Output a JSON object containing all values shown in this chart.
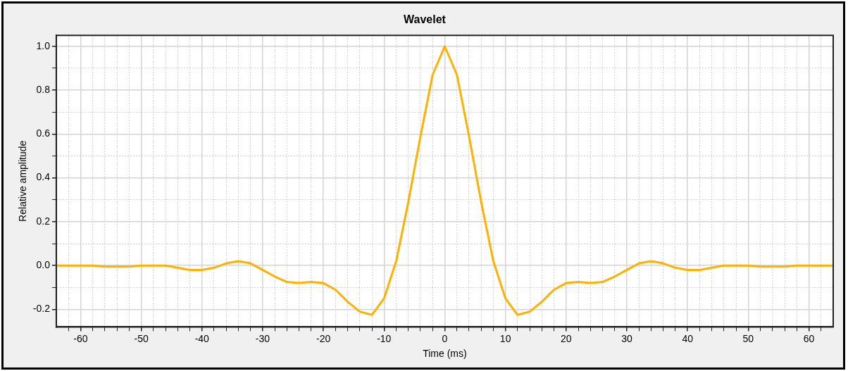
{
  "chart_data": {
    "type": "line",
    "title": "Wavelet",
    "xlabel": "Time (ms)",
    "ylabel": "Relative amplitude",
    "x": [
      -64,
      -62,
      -60,
      -58,
      -56,
      -54,
      -52,
      -50,
      -48,
      -46,
      -44,
      -42,
      -40,
      -38,
      -36,
      -34,
      -32,
      -30,
      -28,
      -26,
      -24,
      -22,
      -20,
      -18,
      -16,
      -14,
      -12,
      -10,
      -8,
      -6,
      -4,
      -2,
      0,
      2,
      4,
      6,
      8,
      10,
      12,
      14,
      16,
      18,
      20,
      22,
      24,
      26,
      28,
      30,
      32,
      34,
      36,
      38,
      40,
      42,
      44,
      46,
      48,
      50,
      52,
      54,
      56,
      58,
      60,
      62,
      64
    ],
    "series": [
      {
        "color": "#ffb000",
        "values": [
          0,
          0,
          0,
          0,
          -0.005,
          -0.005,
          -0.005,
          0,
          0,
          0,
          -0.01,
          -0.02,
          -0.02,
          -0.01,
          0.01,
          0.02,
          0.01,
          -0.02,
          -0.05,
          -0.075,
          -0.08,
          -0.075,
          -0.08,
          -0.11,
          -0.165,
          -0.21,
          -0.225,
          -0.15,
          0.02,
          0.29,
          0.59,
          0.87,
          1.0,
          0.87,
          0.59,
          0.29,
          0.02,
          -0.15,
          -0.225,
          -0.21,
          -0.165,
          -0.11,
          -0.08,
          -0.075,
          -0.08,
          -0.075,
          -0.05,
          -0.02,
          0.01,
          0.02,
          0.01,
          -0.01,
          -0.02,
          -0.02,
          -0.01,
          0,
          0,
          0,
          -0.005,
          -0.005,
          -0.005,
          0,
          0,
          0,
          0
        ]
      }
    ],
    "xlim": [
      -64,
      64
    ],
    "ylim": [
      -0.28,
      1.05
    ],
    "xticks": [
      {
        "value": -62,
        "label": null
      },
      -60,
      {
        "value": -58,
        "label": null
      },
      {
        "value": -56,
        "label": null
      },
      {
        "value": -54,
        "label": null
      },
      {
        "value": -52,
        "label": null
      },
      -50,
      {
        "value": -48,
        "label": null
      },
      {
        "value": -46,
        "label": null
      },
      {
        "value": -44,
        "label": null
      },
      {
        "value": -42,
        "label": null
      },
      -40,
      {
        "value": -38,
        "label": null
      },
      {
        "value": -36,
        "label": null
      },
      {
        "value": -34,
        "label": null
      },
      {
        "value": -32,
        "label": null
      },
      -30,
      {
        "value": -28,
        "label": null
      },
      {
        "value": -26,
        "label": null
      },
      {
        "value": -24,
        "label": null
      },
      {
        "value": -22,
        "label": null
      },
      -20,
      {
        "value": -18,
        "label": null
      },
      {
        "value": -16,
        "label": null
      },
      {
        "value": -14,
        "label": null
      },
      {
        "value": -12,
        "label": null
      },
      -10,
      {
        "value": -8,
        "label": null
      },
      {
        "value": -6,
        "label": null
      },
      {
        "value": -4,
        "label": null
      },
      {
        "value": -2,
        "label": null
      },
      0,
      {
        "value": 2,
        "label": null
      },
      {
        "value": 4,
        "label": null
      },
      {
        "value": 6,
        "label": null
      },
      {
        "value": 8,
        "label": null
      },
      10,
      {
        "value": 12,
        "label": null
      },
      {
        "value": 14,
        "label": null
      },
      {
        "value": 16,
        "label": null
      },
      {
        "value": 18,
        "label": null
      },
      20,
      {
        "value": 22,
        "label": null
      },
      {
        "value": 24,
        "label": null
      },
      {
        "value": 26,
        "label": null
      },
      {
        "value": 28,
        "label": null
      },
      30,
      {
        "value": 32,
        "label": null
      },
      {
        "value": 34,
        "label": null
      },
      {
        "value": 36,
        "label": null
      },
      {
        "value": 38,
        "label": null
      },
      40,
      {
        "value": 42,
        "label": null
      },
      {
        "value": 44,
        "label": null
      },
      {
        "value": 46,
        "label": null
      },
      {
        "value": 48,
        "label": null
      },
      50,
      {
        "value": 52,
        "label": null
      },
      {
        "value": 54,
        "label": null
      },
      {
        "value": 56,
        "label": null
      },
      {
        "value": 58,
        "label": null
      },
      60,
      {
        "value": 62,
        "label": null
      }
    ],
    "yticks": [
      {
        "value": -0.2,
        "label": "-0.2"
      },
      {
        "value": -0.1,
        "label": null
      },
      {
        "value": 0,
        "label": "0.0"
      },
      {
        "value": 0.1,
        "label": null
      },
      {
        "value": 0.2,
        "label": "0.2"
      },
      {
        "value": 0.3,
        "label": null
      },
      {
        "value": 0.4,
        "label": "0.4"
      },
      {
        "value": 0.5,
        "label": null
      },
      {
        "value": 0.6,
        "label": "0.6"
      },
      {
        "value": 0.7,
        "label": null
      },
      {
        "value": 0.8,
        "label": "0.8"
      },
      {
        "value": 0.9,
        "label": null
      },
      {
        "value": 1.0,
        "label": "1.0"
      }
    ],
    "grid": true,
    "legend": false,
    "marker": "none",
    "line_style": "solid"
  }
}
